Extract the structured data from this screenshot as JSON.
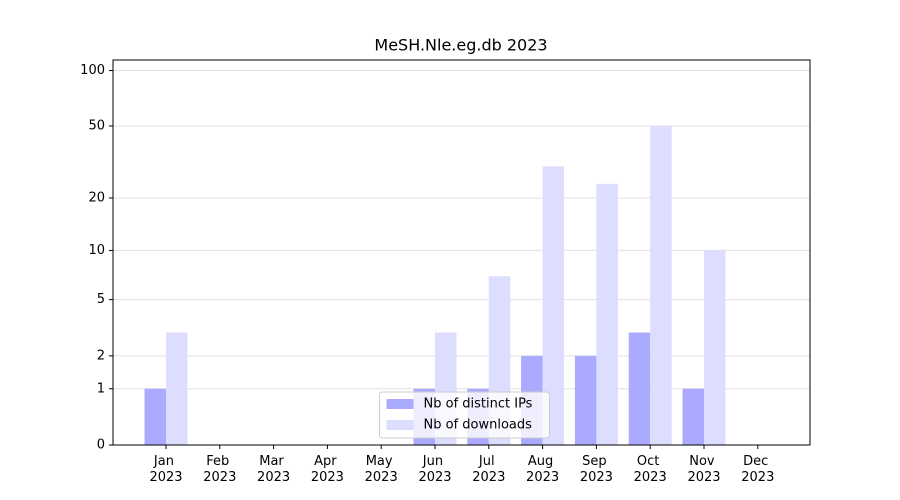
{
  "chart_data": {
    "type": "bar",
    "title": "MeSH.Nle.eg.db 2023",
    "categories": [
      "Jan 2023",
      "Feb 2023",
      "Mar 2023",
      "Apr 2023",
      "May 2023",
      "Jun 2023",
      "Jul 2023",
      "Aug 2023",
      "Sep 2023",
      "Oct 2023",
      "Nov 2023",
      "Dec 2023"
    ],
    "series": [
      {
        "name": "Nb of distinct IPs",
        "color": "#aaaaff",
        "values": [
          1,
          0,
          0,
          0,
          0,
          1,
          1,
          2,
          2,
          3,
          1,
          0
        ]
      },
      {
        "name": "Nb of downloads",
        "color": "#ddddff",
        "values": [
          3,
          0,
          0,
          0,
          0,
          3,
          7,
          30,
          24,
          50,
          10,
          0
        ]
      }
    ],
    "y_scale": "log1p",
    "ylim": [
      0,
      114
    ],
    "yticks": [
      0,
      1,
      2,
      5,
      10,
      20,
      50,
      100
    ],
    "grid": true,
    "legend": "lower center"
  }
}
